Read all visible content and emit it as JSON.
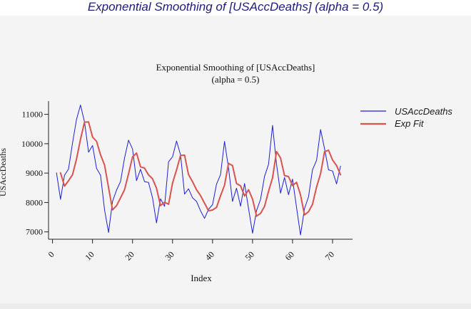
{
  "window": {
    "title": "Exponential Smoothing of [USAccDeaths] (alpha = 0.5)"
  },
  "colors": {
    "title": "#1d1b78",
    "series_raw": "#1f1fd6",
    "series_fit": "#d9534f",
    "panel_bg": "#f4f4f4"
  },
  "chart_data": {
    "type": "line",
    "title_line1": "Exponential Smoothing of [USAccDeaths]",
    "title_line2": "(alpha = 0.5)",
    "xlabel": "Index",
    "ylabel": "USAccDeaths",
    "xlim": [
      -1,
      75
    ],
    "ylim": [
      6750,
      11450
    ],
    "xticks": [
      0,
      10,
      20,
      30,
      40,
      50,
      60,
      70
    ],
    "xtick_labels": [
      "0",
      "10",
      "20",
      "30",
      "40",
      "50",
      "60",
      "70"
    ],
    "yticks": [
      7000,
      8000,
      9000,
      10000,
      11000
    ],
    "ytick_labels": [
      "7000",
      "8000",
      "9000",
      "10000",
      "11000"
    ],
    "legend_position": "right",
    "series": [
      {
        "name": "USAccDeaths",
        "color": "#1f1fd6",
        "x": [
          1,
          2,
          3,
          4,
          5,
          6,
          7,
          8,
          9,
          10,
          11,
          12,
          13,
          14,
          15,
          16,
          17,
          18,
          19,
          20,
          21,
          22,
          23,
          24,
          25,
          26,
          27,
          28,
          29,
          30,
          31,
          32,
          33,
          34,
          35,
          36,
          37,
          38,
          39,
          40,
          41,
          42,
          43,
          44,
          45,
          46,
          47,
          48,
          49,
          50,
          51,
          52,
          53,
          54,
          55,
          56,
          57,
          58,
          59,
          60,
          61,
          62,
          63,
          64,
          65,
          66,
          67,
          68,
          69,
          70,
          71,
          72
        ],
        "values": [
          9007,
          8106,
          8928,
          9137,
          10017,
          10826,
          11317,
          10744,
          9713,
          9938,
          9161,
          8927,
          7750,
          6981,
          8038,
          8422,
          8714,
          9512,
          10120,
          9823,
          8743,
          9129,
          8710,
          8680,
          8162,
          7306,
          8124,
          7870,
          9387,
          9556,
          10093,
          9620,
          8285,
          8466,
          8160,
          8034,
          7717,
          7461,
          7767,
          7925,
          8623,
          8945,
          10078,
          9179,
          8037,
          8488,
          7874,
          8647,
          7792,
          6957,
          7726,
          8106,
          8890,
          9299,
          10625,
          9302,
          8314,
          8850,
          8265,
          8796,
          7836,
          6892,
          7791,
          8192,
          9115,
          9434,
          10484,
          9827,
          9110,
          9070,
          8633,
          9240
        ]
      },
      {
        "name": "Exp Fit",
        "color": "#d9534f",
        "x": [
          2,
          3,
          4,
          5,
          6,
          7,
          8,
          9,
          10,
          11,
          12,
          13,
          14,
          15,
          16,
          17,
          18,
          19,
          20,
          21,
          22,
          23,
          24,
          25,
          26,
          27,
          28,
          29,
          30,
          31,
          32,
          33,
          34,
          35,
          36,
          37,
          38,
          39,
          40,
          41,
          42,
          43,
          44,
          45,
          46,
          47,
          48,
          49,
          50,
          51,
          52,
          53,
          54,
          55,
          56,
          57,
          58,
          59,
          60,
          61,
          62,
          63,
          64,
          65,
          66,
          67,
          68,
          69,
          70,
          71,
          72
        ],
        "values": [
          9007,
          8557,
          8742,
          8940,
          9478,
          10152,
          10734,
          10739,
          10226,
          10082,
          9622,
          9274,
          8512,
          7747,
          7892,
          8157,
          8436,
          8974,
          9547,
          9685,
          9214,
          9171,
          8941,
          8810,
          8486,
          7896,
          8010,
          7940,
          8663,
          9110,
          9601,
          9611,
          8948,
          8707,
          8433,
          8234,
          7975,
          7718,
          7743,
          7834,
          8228,
          8587,
          9332,
          9255,
          8646,
          8567,
          8221,
          8434,
          8113,
          7535,
          7630,
          7868,
          8379,
          8839,
          9732,
          9517,
          8916,
          8883,
          8574,
          8685,
          8260,
          7576,
          7684,
          7938,
          8526,
          8980,
          9732,
          9779,
          9445,
          9257,
          8945
        ]
      }
    ]
  }
}
